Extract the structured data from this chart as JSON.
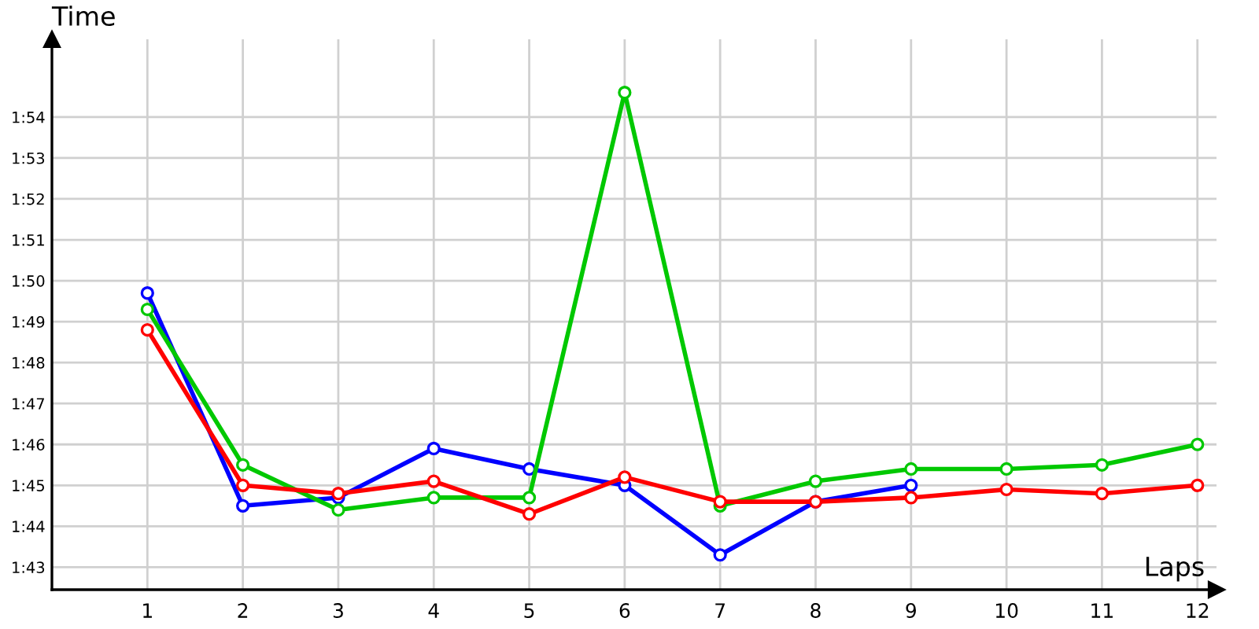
{
  "chart_data": {
    "type": "line",
    "xlabel": "Laps",
    "ylabel": "Time",
    "x": [
      1,
      2,
      3,
      4,
      5,
      6,
      7,
      8,
      9,
      10,
      11,
      12
    ],
    "series": [
      {
        "color": "#ff0000",
        "values": [
          108.8,
          105.0,
          104.8,
          105.1,
          104.3,
          105.2,
          104.6,
          104.6,
          104.7,
          104.9,
          104.8,
          105.0
        ]
      },
      {
        "color": "#00c800",
        "values": [
          109.3,
          105.5,
          104.4,
          104.7,
          104.7,
          114.6,
          104.5,
          105.1,
          105.4,
          105.4,
          105.5,
          106.0
        ]
      },
      {
        "color": "#0000ff",
        "values": [
          109.7,
          104.5,
          104.7,
          105.9,
          105.4,
          105.0,
          103.3,
          104.6,
          105.0,
          null,
          null,
          null
        ]
      }
    ],
    "xlim": [
      0,
      12.2
    ],
    "ylim": [
      102.45,
      115.9
    ],
    "xticks": [
      1,
      2,
      3,
      4,
      5,
      6,
      7,
      8,
      9,
      10,
      11,
      12
    ],
    "yticks": [
      {
        "value": 103,
        "label": "1:43"
      },
      {
        "value": 104,
        "label": "1:44"
      },
      {
        "value": 105,
        "label": "1:45"
      },
      {
        "value": 106,
        "label": "1:46"
      },
      {
        "value": 107,
        "label": "1:47"
      },
      {
        "value": 108,
        "label": "1:48"
      },
      {
        "value": 109,
        "label": "1:49"
      },
      {
        "value": 110,
        "label": "1:50"
      },
      {
        "value": 111,
        "label": "1:51"
      },
      {
        "value": 112,
        "label": "1:52"
      },
      {
        "value": 113,
        "label": "1:53"
      },
      {
        "value": 114,
        "label": "1:54"
      }
    ],
    "grid": true,
    "marker": "circle",
    "line_style": "solid"
  }
}
